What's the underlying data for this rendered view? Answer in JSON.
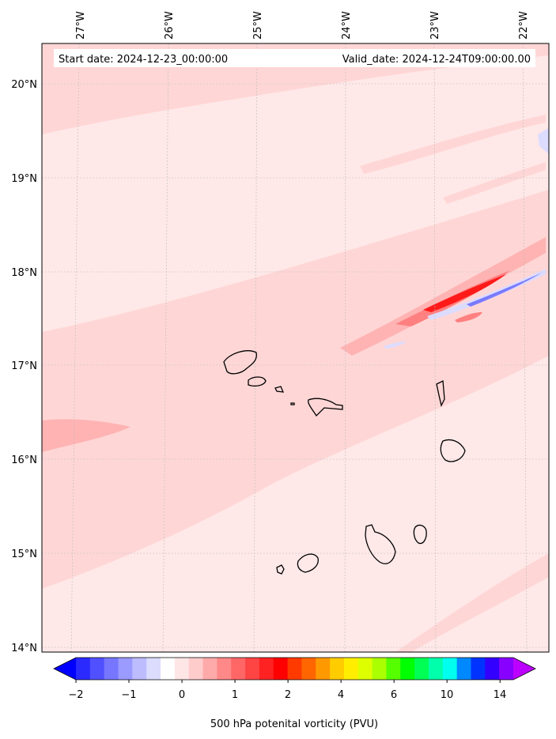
{
  "header": {
    "start_date": "Start date: 2024-12-23_00:00:00",
    "valid_date": "Valid_date: 2024-12-24T09:00:00.00"
  },
  "axes": {
    "lon_labels": [
      "27°W",
      "26°W",
      "25°W",
      "24°W",
      "23°W",
      "22°W"
    ],
    "lat_labels": [
      "20°N",
      "19°N",
      "18°N",
      "17°N",
      "16°N",
      "15°N",
      "14°N"
    ],
    "gridlines": true
  },
  "colorbar": {
    "title": "500 hPa potenital vorticity (PVU)",
    "tick_labels": [
      "−2",
      "−1",
      "0",
      "1",
      "2",
      "4",
      "6",
      "10",
      "14"
    ],
    "extend": "both",
    "colors": [
      "#0000ff",
      "#2a2aff",
      "#5050ff",
      "#7676ff",
      "#9a9aff",
      "#bcbcff",
      "#dcdcff",
      "#ffffff",
      "#ffe6e6",
      "#ffcccc",
      "#ffaaaa",
      "#ff8888",
      "#ff6666",
      "#ff4444",
      "#ff2222",
      "#ff0000",
      "#ff3a00",
      "#ff6600",
      "#ff9900",
      "#ffcc00",
      "#ffee00",
      "#ddff00",
      "#aaff00",
      "#55ff00",
      "#00ff00",
      "#00ff55",
      "#00ffaa",
      "#00ffee",
      "#0088ff",
      "#0033ff",
      "#3300ff",
      "#8800ff",
      "#bb00ff"
    ]
  },
  "map_colors": {
    "background": "#ffe8e8",
    "band_light": "#ffd6d6",
    "band_medium": "#ffb3b3",
    "band_strong": "#ff8080",
    "band_red": "#ff1a1a",
    "band_blue_light": "#dcdcff",
    "band_blue": "#7a7aff",
    "coastline": "#000000"
  }
}
